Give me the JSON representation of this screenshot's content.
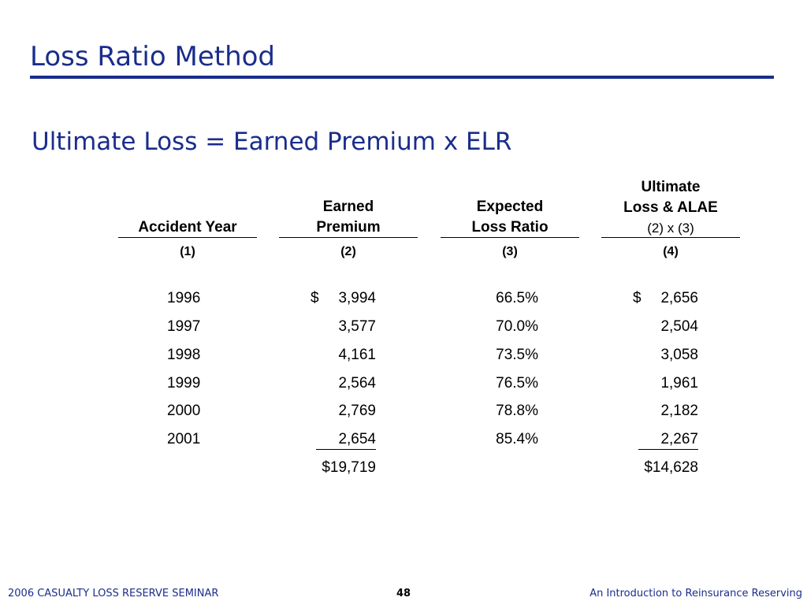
{
  "slide": {
    "title": "Loss Ratio Method",
    "formula": "Ultimate Loss = Earned Premium x ELR"
  },
  "table": {
    "headers": {
      "col1": [
        "Accident Year"
      ],
      "col2": [
        "Earned",
        "Premium"
      ],
      "col3": [
        "Expected",
        "Loss Ratio"
      ],
      "col4": [
        "Ultimate",
        "Loss & ALAE"
      ],
      "col4_sub": "(2) x (3)"
    },
    "col_numbers": [
      "(1)",
      "(2)",
      "(3)",
      "(4)"
    ],
    "rows": [
      {
        "year": "1996",
        "premium_prefix": "$",
        "premium": "3,994",
        "elr": "66.5%",
        "ult_prefix": "$",
        "ultimate": "2,656"
      },
      {
        "year": "1997",
        "premium_prefix": "",
        "premium": "3,577",
        "elr": "70.0%",
        "ult_prefix": "",
        "ultimate": "2,504"
      },
      {
        "year": "1998",
        "premium_prefix": "",
        "premium": "4,161",
        "elr": "73.5%",
        "ult_prefix": "",
        "ultimate": "3,058"
      },
      {
        "year": "1999",
        "premium_prefix": "",
        "premium": "2,564",
        "elr": "76.5%",
        "ult_prefix": "",
        "ultimate": "1,961"
      },
      {
        "year": "2000",
        "premium_prefix": "",
        "premium": "2,769",
        "elr": "78.8%",
        "ult_prefix": "",
        "ultimate": "2,182"
      },
      {
        "year": "2001",
        "premium_prefix": "",
        "premium": "2,654",
        "elr": "85.4%",
        "ult_prefix": "",
        "ultimate": "2,267"
      }
    ],
    "totals": {
      "premium": "$19,719",
      "ultimate": "$14,628"
    }
  },
  "footer": {
    "left": "2006 CASUALTY LOSS RESERVE SEMINAR",
    "page": "48",
    "right": "An Introduction to Reinsurance Reserving"
  },
  "colors": {
    "title_blue": "#1a2d8c",
    "text": "#000000"
  }
}
